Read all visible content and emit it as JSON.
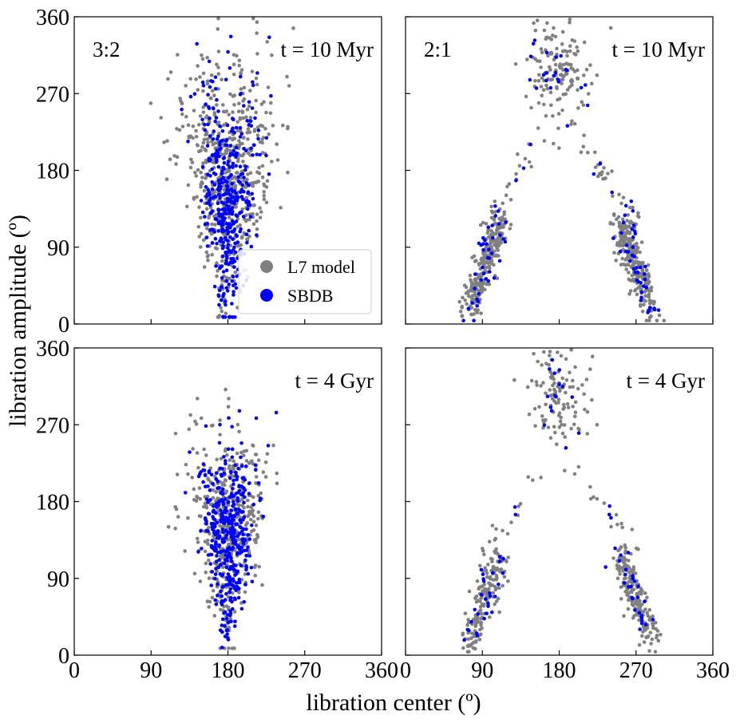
{
  "chart_data": {
    "type": "scatter",
    "xlabel": "libration center (º)",
    "ylabel": "libration amplitude (º)",
    "xlim": [
      0,
      360
    ],
    "ylim": [
      0,
      360
    ],
    "ticks": [
      0,
      90,
      180,
      270,
      360
    ],
    "tick_labels": [
      "0",
      "90",
      "180",
      "270",
      "360"
    ],
    "legend": {
      "placement": "lower-right of top-left panel",
      "entries": [
        {
          "name": "L7 model",
          "color": "#808080"
        },
        {
          "name": "SBDB",
          "color": "#0000ff"
        }
      ]
    },
    "panels": [
      {
        "id": "3to2-10myr",
        "resonance": "3:2",
        "time": "t = 10 Myr",
        "pattern": "center",
        "series": [
          {
            "name": "L7 model",
            "color": "#808080",
            "n": 600,
            "center": [
              180,
              175
            ],
            "spread": [
              22,
              70
            ]
          },
          {
            "name": "SBDB",
            "color": "#0000ff",
            "n": 420,
            "center": [
              180,
              150
            ],
            "spread": [
              15,
              65
            ]
          }
        ]
      },
      {
        "id": "2to1-10myr",
        "resonance": "2:1",
        "time": "t = 10 Myr",
        "pattern": "asymmetric",
        "series": [
          {
            "name": "L7 model",
            "color": "#808080",
            "n": 700
          },
          {
            "name": "SBDB",
            "color": "#0000ff",
            "n": 110
          }
        ]
      },
      {
        "id": "3to2-4gyr",
        "resonance": "",
        "time": "t = 4 Gyr",
        "pattern": "center",
        "series": [
          {
            "name": "L7 model",
            "color": "#808080",
            "n": 450,
            "center": [
              180,
              155
            ],
            "spread": [
              20,
              55
            ]
          },
          {
            "name": "SBDB",
            "color": "#0000ff",
            "n": 420,
            "center": [
              180,
              140
            ],
            "spread": [
              15,
              55
            ]
          }
        ]
      },
      {
        "id": "2to1-4gyr",
        "resonance": "",
        "time": "t = 4 Gyr",
        "pattern": "asymmetric",
        "series": [
          {
            "name": "L7 model",
            "color": "#808080",
            "n": 500
          },
          {
            "name": "SBDB",
            "color": "#0000ff",
            "n": 75
          }
        ]
      }
    ]
  }
}
